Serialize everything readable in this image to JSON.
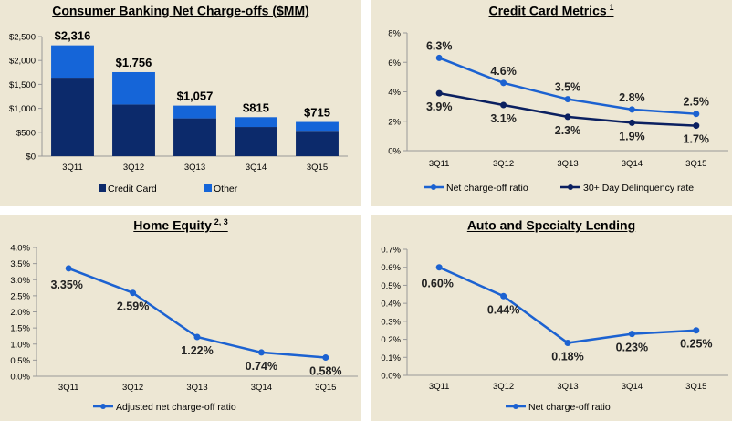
{
  "colors": {
    "dark_navy": "#0c2a6b",
    "bright_blue": "#1565d8",
    "line_blue": "#1c62d1",
    "line_navy": "#0b2060",
    "panel_bg": "#ede7d4"
  },
  "chart_data": [
    {
      "id": "consumer",
      "type": "bar",
      "stacked": true,
      "title": "Consumer Banking Net Charge-offs ($MM)",
      "title_sup": "",
      "categories": [
        "3Q11",
        "3Q12",
        "3Q13",
        "3Q14",
        "3Q15"
      ],
      "series": [
        {
          "name": "Credit Card",
          "values": [
            1640,
            1080,
            790,
            610,
            530
          ],
          "color": "#0c2a6b"
        },
        {
          "name": "Other",
          "values": [
            676,
            676,
            267,
            205,
            185
          ],
          "color": "#1565d8"
        }
      ],
      "totals": [
        "$2,316",
        "$1,756",
        "$1,057",
        "$815",
        "$715"
      ],
      "yticks": [
        "$0",
        "$500",
        "$1,000",
        "$1,500",
        "$2,000",
        "$2,500"
      ],
      "ylim": [
        0,
        2500
      ],
      "grid": false,
      "legend": "bottom"
    },
    {
      "id": "card",
      "type": "line",
      "title": "Credit Card Metrics",
      "title_sup": "1",
      "categories": [
        "3Q11",
        "3Q12",
        "3Q13",
        "3Q14",
        "3Q15"
      ],
      "series": [
        {
          "name": "Net charge-off ratio",
          "values": [
            6.3,
            4.6,
            3.5,
            2.8,
            2.5
          ],
          "labels": [
            "6.3%",
            "4.6%",
            "3.5%",
            "2.8%",
            "2.5%"
          ],
          "color": "#1c62d1",
          "label_pos": "above"
        },
        {
          "name": "30+ Day Delinquency rate",
          "values": [
            3.9,
            3.1,
            2.3,
            1.9,
            1.7
          ],
          "labels": [
            "3.9%",
            "3.1%",
            "2.3%",
            "1.9%",
            "1.7%"
          ],
          "color": "#0b2060",
          "label_pos": "below"
        }
      ],
      "yticks": [
        "0%",
        "2%",
        "4%",
        "6%",
        "8%"
      ],
      "ylim": [
        0,
        8
      ],
      "grid": false,
      "legend": "bottom"
    },
    {
      "id": "home",
      "type": "line",
      "title": "Home Equity",
      "title_sup": "2, 3",
      "categories": [
        "3Q11",
        "3Q12",
        "3Q13",
        "3Q14",
        "3Q15"
      ],
      "series": [
        {
          "name": "Adjusted net charge-off ratio",
          "values": [
            3.35,
            2.59,
            1.22,
            0.74,
            0.58
          ],
          "labels": [
            "3.35%",
            "2.59%",
            "1.22%",
            "0.74%",
            "0.58%"
          ],
          "color": "#1c62d1",
          "label_pos": "below"
        }
      ],
      "yticks": [
        "0.0%",
        "0.5%",
        "1.0%",
        "1.5%",
        "2.0%",
        "2.5%",
        "3.0%",
        "3.5%",
        "4.0%"
      ],
      "ylim": [
        0,
        4
      ],
      "grid": false,
      "legend": "bottom"
    },
    {
      "id": "auto",
      "type": "line",
      "title": "Auto and Specialty Lending",
      "title_sup": "",
      "categories": [
        "3Q11",
        "3Q12",
        "3Q13",
        "3Q14",
        "3Q15"
      ],
      "series": [
        {
          "name": "Net charge-off ratio",
          "values": [
            0.6,
            0.44,
            0.18,
            0.23,
            0.25
          ],
          "labels": [
            "0.60%",
            "0.44%",
            "0.18%",
            "0.23%",
            "0.25%"
          ],
          "color": "#1c62d1",
          "label_pos": "below"
        }
      ],
      "yticks": [
        "0.0%",
        "0.1%",
        "0.2%",
        "0.3%",
        "0.4%",
        "0.5%",
        "0.6%",
        "0.7%"
      ],
      "ylim": [
        0,
        0.7
      ],
      "grid": false,
      "legend": "bottom"
    }
  ]
}
